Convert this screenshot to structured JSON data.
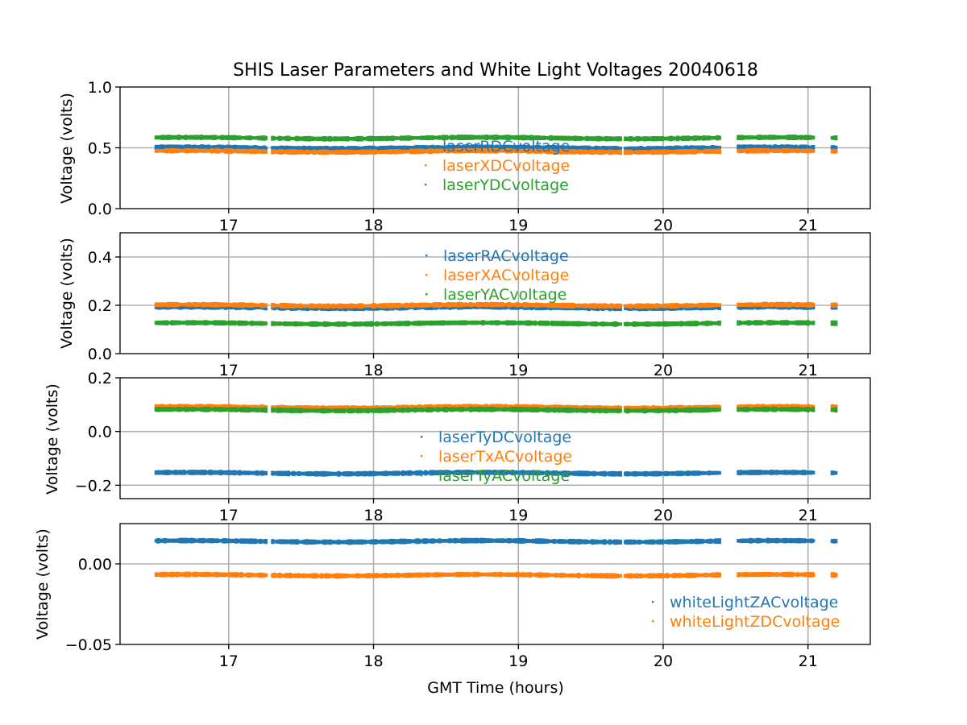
{
  "title": "SHIS Laser Parameters and White Light Voltages 20040618",
  "colors": {
    "c0": "#1f77b4",
    "c1": "#ff7f0e",
    "c2": "#2ca02c",
    "grid": "#b0b0b0",
    "axis": "#000000"
  },
  "chart_data": [
    {
      "type": "scatter",
      "title": "SHIS Laser Parameters and White Light Voltages 20040618",
      "xlabel": "",
      "ylabel": "Voltage (volts)",
      "xlim": [
        16.25,
        21.43
      ],
      "ylim": [
        0.0,
        1.0
      ],
      "xticks": [
        17,
        18,
        19,
        20,
        21
      ],
      "yticks": [
        0.0,
        0.5,
        1.0
      ],
      "ytick_labels": [
        "0.0",
        "0.5",
        "1.0"
      ],
      "grid": true,
      "legend_position": "center",
      "series": [
        {
          "name": "laserRDCvoltage",
          "color": "#1f77b4",
          "level": 0.5
        },
        {
          "name": "laserXDCvoltage",
          "color": "#ff7f0e",
          "level": 0.47
        },
        {
          "name": "laserYDCvoltage",
          "color": "#2ca02c",
          "level": 0.58
        }
      ]
    },
    {
      "type": "scatter",
      "xlabel": "",
      "ylabel": "Voltage (volts)",
      "xlim": [
        16.25,
        21.43
      ],
      "ylim": [
        0.0,
        0.5
      ],
      "xticks": [
        17,
        18,
        19,
        20,
        21
      ],
      "yticks": [
        0.0,
        0.2,
        0.4
      ],
      "ytick_labels": [
        "0.0",
        "0.2",
        "0.4"
      ],
      "grid": true,
      "legend_position": "upper center",
      "series": [
        {
          "name": "laserRACvoltage",
          "color": "#1f77b4",
          "level": 0.19
        },
        {
          "name": "laserXACvoltage",
          "color": "#ff7f0e",
          "level": 0.2
        },
        {
          "name": "laserYACvoltage",
          "color": "#2ca02c",
          "level": 0.125
        }
      ]
    },
    {
      "type": "scatter",
      "xlabel": "",
      "ylabel": "Voltage (volts)",
      "xlim": [
        16.25,
        21.43
      ],
      "ylim": [
        -0.25,
        0.2
      ],
      "xticks": [
        17,
        18,
        19,
        20,
        21
      ],
      "yticks": [
        -0.2,
        0.0,
        0.2
      ],
      "ytick_labels": [
        "−0.2",
        "0.0",
        "0.2"
      ],
      "grid": true,
      "legend_position": "center",
      "series": [
        {
          "name": "laserTyDCvoltage",
          "color": "#1f77b4",
          "level": -0.155
        },
        {
          "name": "laserTxACvoltage",
          "color": "#ff7f0e",
          "level": 0.09
        },
        {
          "name": "laserTyACvoltage",
          "color": "#2ca02c",
          "level": 0.08
        }
      ]
    },
    {
      "type": "scatter",
      "xlabel": "GMT Time (hours)",
      "ylabel": "Voltage (volts)",
      "xlim": [
        16.25,
        21.43
      ],
      "ylim": [
        -0.05,
        0.025
      ],
      "xticks": [
        17,
        18,
        19,
        20,
        21
      ],
      "yticks": [
        -0.05,
        0.0
      ],
      "ytick_labels": [
        "−0.05",
        "0.00"
      ],
      "grid": true,
      "legend_position": "lower right",
      "series": [
        {
          "name": "whiteLightZACvoltage",
          "color": "#1f77b4",
          "level": 0.014
        },
        {
          "name": "whiteLightZDCvoltage",
          "color": "#ff7f0e",
          "level": -0.007
        }
      ]
    }
  ]
}
